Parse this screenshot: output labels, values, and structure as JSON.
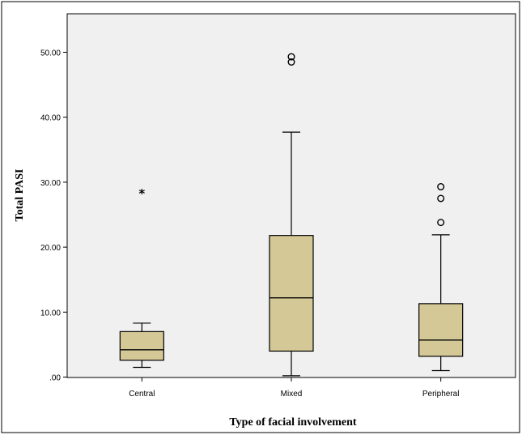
{
  "chart_data": {
    "type": "boxplot",
    "title": "",
    "xlabel": "Type of facial involvement",
    "ylabel": "Total  PASI",
    "ylim": [
      0,
      55
    ],
    "yticks": [
      0,
      10,
      20,
      30,
      40,
      50
    ],
    "ytick_labels": [
      ".00",
      "10.00",
      "20.00",
      "30.00",
      "40.00",
      "50.00"
    ],
    "grid": false,
    "categories": [
      "Central",
      "Mixed",
      "Peripheral"
    ],
    "boxes": [
      {
        "category": "Central",
        "whisker_low": 1.5,
        "q1": 2.6,
        "median": 4.2,
        "q3": 7.0,
        "whisker_high": 8.3,
        "outliers": [],
        "extremes": [
          28.5
        ]
      },
      {
        "category": "Mixed",
        "whisker_low": 0.2,
        "q1": 4.0,
        "median": 12.2,
        "q3": 21.8,
        "whisker_high": 37.7,
        "outliers": [
          48.5,
          49.3
        ],
        "extremes": []
      },
      {
        "category": "Peripheral",
        "whisker_low": 1.0,
        "q1": 3.2,
        "median": 5.7,
        "q3": 11.3,
        "whisker_high": 21.9,
        "outliers": [
          23.8,
          27.5,
          29.3
        ],
        "extremes": []
      }
    ],
    "colors": {
      "plot_background": "#f0f0f0",
      "box_fill": "#d4c896",
      "stroke": "#000000",
      "page_background": "#ffffff"
    }
  }
}
